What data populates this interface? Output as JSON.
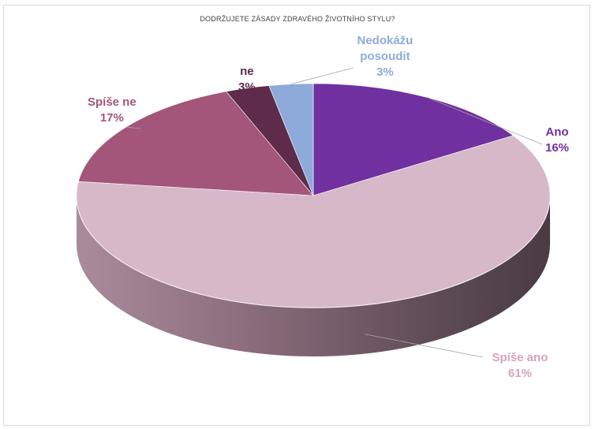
{
  "chart_data": {
    "type": "pie",
    "title": "DODRŽUJETE ZÁSADY ZDRAVÉHO ŽIVOTNÍHO STYLU?",
    "categories": [
      "Ano",
      "Spíše ano",
      "Spíše ne",
      "ne",
      "Nedokážu posoudit"
    ],
    "values": [
      16,
      61,
      17,
      3,
      3
    ],
    "value_labels": [
      "16%",
      "61%",
      "17%",
      "3%",
      "3%"
    ],
    "colors": [
      "#7030a0",
      "#d7b8c9",
      "#a3567a",
      "#5e2b4a",
      "#8eaadb"
    ],
    "label_colors": [
      "#7030a0",
      "#d6a3bd",
      "#a3567a",
      "#5e2b4a",
      "#8eaadb"
    ],
    "style": "3d",
    "legend": "none"
  }
}
